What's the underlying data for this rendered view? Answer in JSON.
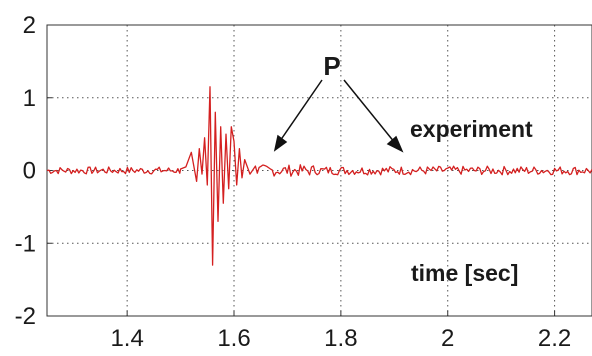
{
  "chart_data": {
    "type": "line",
    "title": "",
    "xlabel": "",
    "ylabel": "",
    "xlim": [
      1.25,
      2.27
    ],
    "ylim": [
      -2,
      2
    ],
    "grid": true,
    "x_ticks": [
      1.4,
      1.6,
      1.8,
      2,
      2.2
    ],
    "x_tick_labels": [
      "1.4",
      "1.6",
      "1.8",
      "2",
      "2.2"
    ],
    "y_ticks": [
      2,
      1,
      0,
      -1,
      -2
    ],
    "y_tick_labels": [
      "2",
      "1",
      "0",
      "-1",
      "-2"
    ],
    "series": [
      {
        "color": "#d42020",
        "x": [
          1.5,
          1.51,
          1.52,
          1.53,
          1.535,
          1.54,
          1.545,
          1.55,
          1.555,
          1.56,
          1.565,
          1.57,
          1.575,
          1.58,
          1.585,
          1.59,
          1.595,
          1.6,
          1.605,
          1.61,
          1.615,
          1.62,
          1.63,
          1.64
        ],
        "y": [
          0.02,
          0.05,
          0.25,
          -0.15,
          0.3,
          -0.05,
          0.45,
          -0.2,
          1.15,
          -1.3,
          0.8,
          -0.7,
          0.6,
          -0.45,
          0.5,
          -0.25,
          0.6,
          0.4,
          -0.2,
          0.3,
          -0.1,
          0.15,
          -0.05,
          0.06
        ]
      }
    ],
    "noise_amplitude": 0.05
  },
  "annotations": {
    "p_label": "P",
    "experiment_label": "experiment",
    "time_label": "time [sec]"
  }
}
